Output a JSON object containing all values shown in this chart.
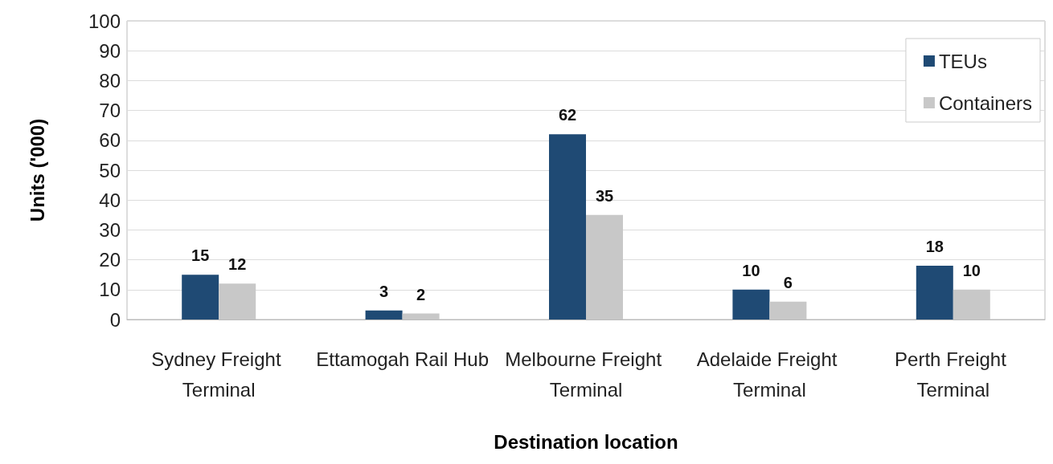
{
  "chart_data": {
    "type": "bar",
    "xlabel": "Destination location",
    "ylabel": "Units ('000)",
    "categories": [
      "Sydney Freight Terminal",
      "Ettamogah Rail Hub",
      "Melbourne Freight Terminal",
      "Adelaide Freight Terminal",
      "Perth Freight Terminal"
    ],
    "series": [
      {
        "name": "TEUs",
        "color": "#1f4a74",
        "values": [
          15,
          3,
          62,
          10,
          18
        ]
      },
      {
        "name": "Containers",
        "color": "#c8c8c8",
        "values": [
          12,
          2,
          35,
          6,
          10
        ]
      }
    ],
    "ylim": [
      0,
      100
    ],
    "yticks": [
      0,
      10,
      20,
      30,
      40,
      50,
      60,
      70,
      80,
      90,
      100
    ],
    "grid": "y",
    "legend": "top right",
    "data_labels": true
  }
}
